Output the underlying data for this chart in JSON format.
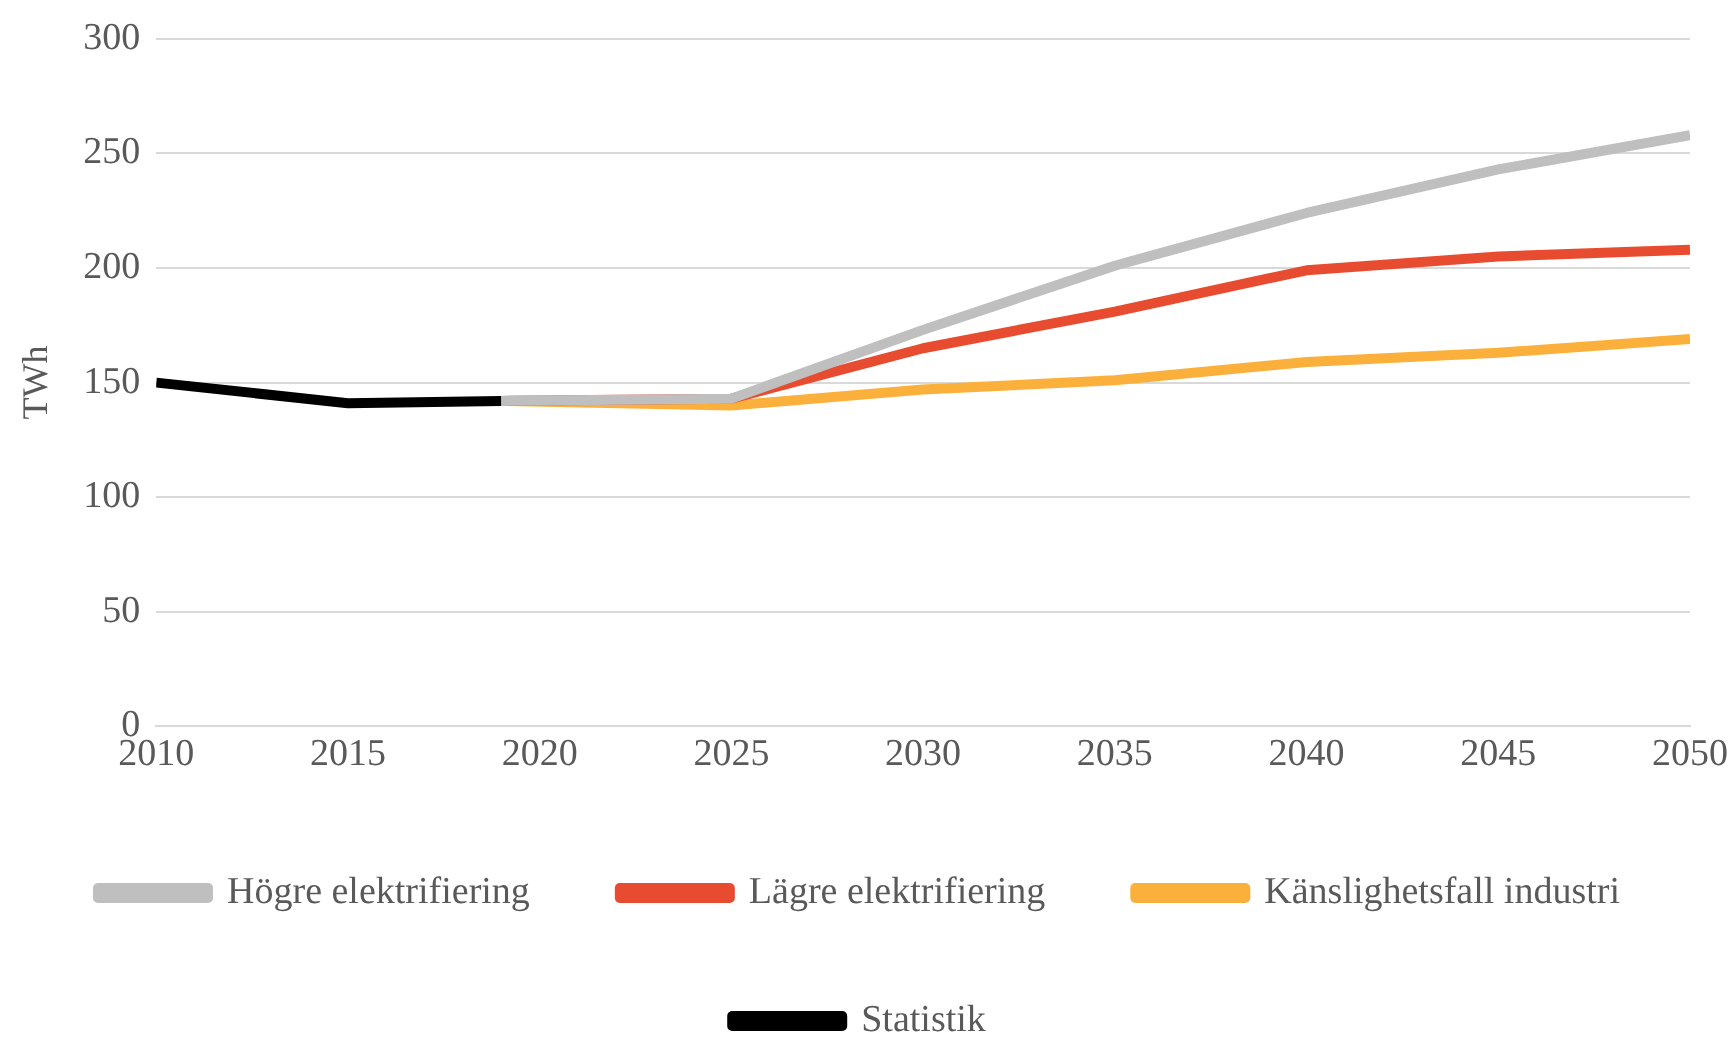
{
  "chart_data": {
    "type": "line",
    "ylabel": "TWh",
    "xlim": [
      2010,
      2050
    ],
    "xticks": [
      2010,
      2015,
      2020,
      2025,
      2030,
      2035,
      2040,
      2045,
      2050
    ],
    "ylim": [
      0,
      300
    ],
    "yticks": [
      0,
      50,
      100,
      150,
      200,
      250,
      300
    ],
    "grid": "y",
    "legend": "bottom",
    "marker": "none",
    "line_style": "solid",
    "series": [
      {
        "name": "Högre elektrifiering",
        "color": "#bfbfbf",
        "x": [
          2019,
          2025,
          2030,
          2035,
          2040,
          2045,
          2050
        ],
        "values": [
          142,
          143,
          173,
          201,
          224,
          243,
          258
        ]
      },
      {
        "name": "Lägre elektrifiering",
        "color": "#e84c30",
        "x": [
          2019,
          2025,
          2030,
          2035,
          2040,
          2045,
          2050
        ],
        "values": [
          142,
          143,
          165,
          181,
          199,
          205,
          208
        ]
      },
      {
        "name": "Känslighetsfall industri",
        "color": "#fbb03b",
        "x": [
          2019,
          2025,
          2030,
          2035,
          2040,
          2045,
          2050
        ],
        "values": [
          142,
          140,
          147,
          151,
          159,
          163,
          169
        ]
      },
      {
        "name": "Statistik",
        "color": "#000000",
        "x": [
          2010,
          2015,
          2019
        ],
        "values": [
          150,
          141,
          142
        ]
      }
    ]
  }
}
